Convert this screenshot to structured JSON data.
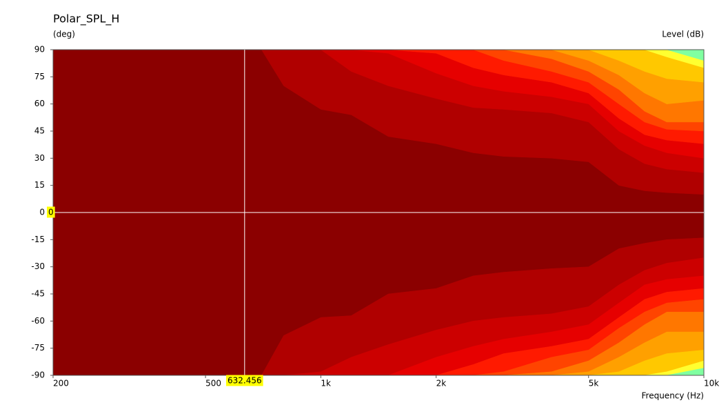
{
  "chart_data": {
    "type": "contour",
    "title": "Polar_SPL_H",
    "y_label": "(deg)",
    "level_label": "Level  (dB)",
    "x_label": "Frequency  (Hz)",
    "x_scale": "log",
    "xlim": [
      200,
      10000
    ],
    "xticks": [
      200,
      500,
      {
        "value": 1000,
        "label": "1k"
      },
      {
        "value": 2000,
        "label": "2k"
      },
      {
        "value": 5000,
        "label": "5k"
      },
      {
        "value": 10000,
        "label": "10k"
      }
    ],
    "ylim": [
      -90,
      90
    ],
    "yticks": [
      -90,
      -75,
      -60,
      -45,
      -30,
      -15,
      0,
      15,
      30,
      45,
      60,
      75,
      90
    ],
    "base_color": "#8b0000",
    "cursor": {
      "x": 632.456,
      "y": 0
    },
    "x": [
      700,
      800,
      1000,
      1200,
      1500,
      2000,
      2500,
      3000,
      4000,
      5000,
      6000,
      7000,
      8000,
      10000
    ],
    "bands": [
      {
        "color": "#b00000",
        "upper": [
          90,
          70,
          57,
          54,
          42,
          38,
          33,
          31,
          30,
          28,
          15,
          12,
          11,
          10
        ],
        "lower": [
          -90,
          -68,
          -58,
          -57,
          -45,
          -42,
          -35,
          -33,
          -31,
          -30,
          -20,
          -17,
          -15,
          -14
        ]
      },
      {
        "color": "#cc0000",
        "upper": [
          90,
          90,
          90,
          78,
          70,
          63,
          58,
          57,
          55,
          50,
          35,
          27,
          24,
          22
        ],
        "lower": [
          -90,
          -90,
          -88,
          -80,
          -73,
          -65,
          -60,
          -58,
          -56,
          -52,
          -40,
          -32,
          -28,
          -25
        ]
      },
      {
        "color": "#e60000",
        "upper": [
          90,
          90,
          90,
          90,
          88,
          77,
          70,
          67,
          64,
          60,
          45,
          37,
          33,
          30
        ],
        "lower": [
          -90,
          -90,
          -90,
          -90,
          -90,
          -80,
          -74,
          -70,
          -66,
          -62,
          -50,
          -40,
          -37,
          -35
        ]
      },
      {
        "color": "#ff1a00",
        "upper": [
          90,
          90,
          90,
          90,
          90,
          88,
          80,
          76,
          72,
          66,
          52,
          43,
          40,
          38
        ],
        "lower": [
          -90,
          -90,
          -90,
          -90,
          -90,
          -90,
          -84,
          -78,
          -74,
          -70,
          -58,
          -48,
          -44,
          -42
        ]
      },
      {
        "color": "#ff4400",
        "upper": [
          90,
          90,
          90,
          90,
          90,
          90,
          90,
          84,
          78,
          72,
          60,
          50,
          46,
          45
        ],
        "lower": [
          -90,
          -90,
          -90,
          -90,
          -90,
          -90,
          -90,
          -88,
          -80,
          -76,
          -64,
          -55,
          -50,
          -48
        ]
      },
      {
        "color": "#ff7700",
        "upper": [
          90,
          90,
          90,
          90,
          90,
          90,
          90,
          90,
          85,
          78,
          68,
          56,
          50,
          50
        ],
        "lower": [
          -90,
          -90,
          -90,
          -90,
          -90,
          -90,
          -90,
          -90,
          -88,
          -82,
          -72,
          -62,
          -55,
          -55
        ]
      },
      {
        "color": "#ffa000",
        "upper": [
          90,
          90,
          90,
          90,
          90,
          90,
          90,
          90,
          90,
          84,
          76,
          66,
          60,
          62
        ],
        "lower": [
          -90,
          -90,
          -90,
          -90,
          -90,
          -90,
          -90,
          -90,
          -90,
          -88,
          -80,
          -72,
          -66,
          -66
        ]
      },
      {
        "color": "#ffc800",
        "upper": [
          90,
          90,
          90,
          90,
          90,
          90,
          90,
          90,
          90,
          90,
          84,
          78,
          74,
          72
        ],
        "lower": [
          -90,
          -90,
          -90,
          -90,
          -90,
          -90,
          -90,
          -90,
          -90,
          -90,
          -88,
          -82,
          -78,
          -76
        ]
      },
      {
        "color": "#ffff30",
        "upper": [
          90,
          90,
          90,
          90,
          90,
          90,
          90,
          90,
          90,
          90,
          90,
          90,
          86,
          80
        ],
        "lower": [
          -90,
          -90,
          -90,
          -90,
          -90,
          -90,
          -90,
          -90,
          -90,
          -90,
          -90,
          -90,
          -88,
          -82
        ]
      },
      {
        "color": "#80ffa0",
        "upper": [
          90,
          90,
          90,
          90,
          90,
          90,
          90,
          90,
          90,
          90,
          90,
          90,
          90,
          84
        ],
        "lower": [
          -90,
          -90,
          -90,
          -90,
          -90,
          -90,
          -90,
          -90,
          -90,
          -90,
          -90,
          -90,
          -90,
          -86
        ]
      }
    ]
  }
}
